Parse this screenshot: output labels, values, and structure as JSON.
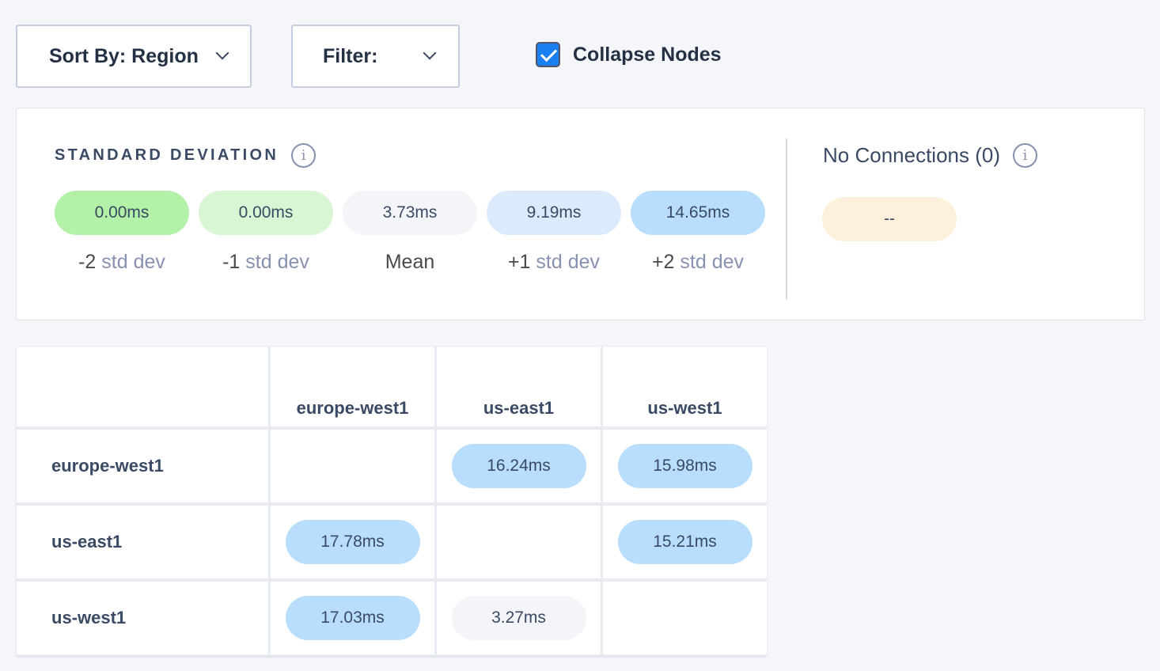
{
  "toolbar": {
    "sort_label": "Sort By: Region",
    "filter_label": "Filter:",
    "collapse_label": "Collapse Nodes",
    "collapse_checked": true
  },
  "legend": {
    "title": "STANDARD DEVIATION",
    "items": [
      {
        "value": "0.00ms",
        "sign": "-2",
        "label": " std dev",
        "color": "#b3f0a8"
      },
      {
        "value": "0.00ms",
        "sign": "-1",
        "label": " std dev",
        "color": "#d9f6d4"
      },
      {
        "value": "3.73ms",
        "sign": "Mean",
        "label": "",
        "color": "#f3f5f9"
      },
      {
        "value": "9.19ms",
        "sign": "+1",
        "label": " std dev",
        "color": "#dcebfb"
      },
      {
        "value": "14.65ms",
        "sign": "+2",
        "label": " std dev",
        "color": "#b9defd"
      }
    ]
  },
  "no_connections": {
    "label": "No Connections (0)",
    "value": "--",
    "color": "#fdf0dc"
  },
  "matrix": {
    "columns": [
      "europe-west1",
      "us-east1",
      "us-west1"
    ],
    "rows": [
      {
        "name": "europe-west1",
        "cells": [
          null,
          {
            "v": "16.24ms",
            "c": "#b9defd"
          },
          {
            "v": "15.98ms",
            "c": "#b9defd"
          }
        ]
      },
      {
        "name": "us-east1",
        "cells": [
          {
            "v": "17.78ms",
            "c": "#b9defd"
          },
          null,
          {
            "v": "15.21ms",
            "c": "#b9defd"
          }
        ]
      },
      {
        "name": "us-west1",
        "cells": [
          {
            "v": "17.03ms",
            "c": "#b9defd"
          },
          {
            "v": "3.27ms",
            "c": "#f3f5f9"
          },
          null
        ]
      }
    ]
  }
}
